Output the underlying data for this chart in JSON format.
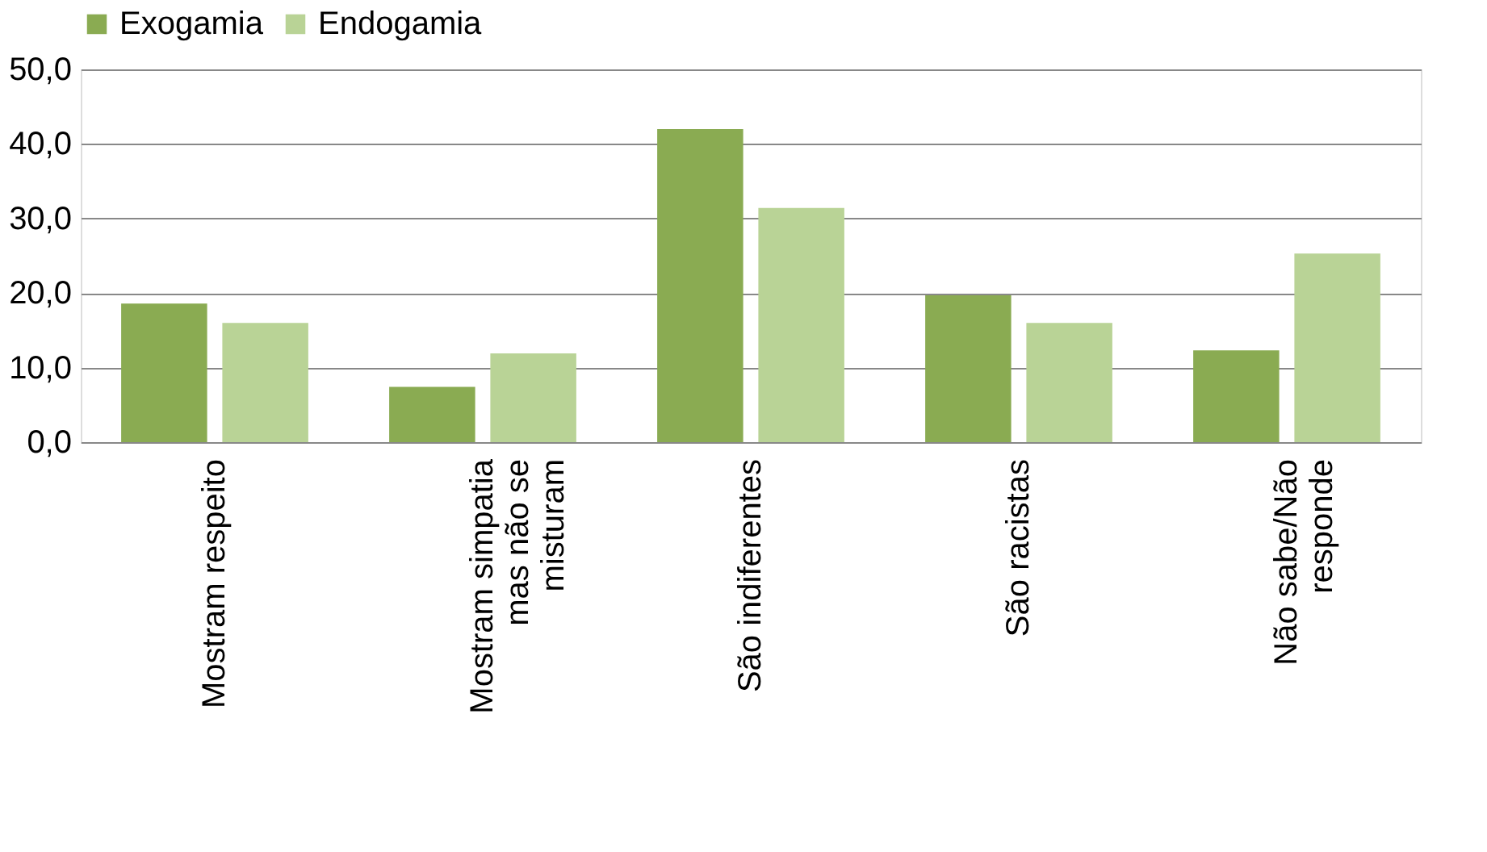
{
  "chart_data": {
    "type": "bar",
    "categories": [
      "Mostram respeito",
      "Mostram simpatia\nmas não se\nmisturam",
      "São indiferentes",
      "São racistas",
      "Não sabe/Não\nresponde"
    ],
    "series": [
      {
        "name": "Exogamia",
        "color": "#8aab52",
        "values": [
          18.6,
          7.4,
          42.0,
          19.7,
          12.3
        ]
      },
      {
        "name": "Endogamia",
        "color": "#b9d396",
        "values": [
          16.0,
          11.9,
          31.4,
          16.0,
          25.3
        ]
      }
    ],
    "ylim": [
      0,
      50
    ],
    "yticks": [
      {
        "value": 0,
        "label": "0,0"
      },
      {
        "value": 10,
        "label": "10,0"
      },
      {
        "value": 20,
        "label": "20,0"
      },
      {
        "value": 30,
        "label": "30,0"
      },
      {
        "value": 40,
        "label": "40,0"
      },
      {
        "value": 50,
        "label": "50,0"
      }
    ],
    "grid": "y",
    "legend": "top"
  }
}
